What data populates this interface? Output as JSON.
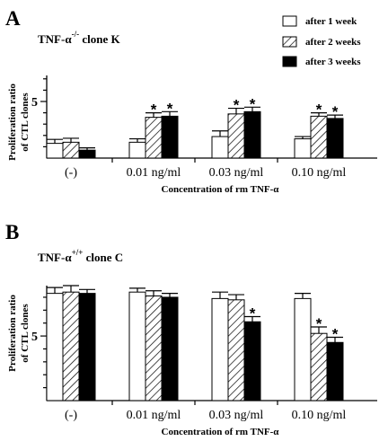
{
  "legend": {
    "entries": [
      {
        "label": "after 1 week",
        "fill": "white"
      },
      {
        "label": "after 2 weeks",
        "fill": "hatch"
      },
      {
        "label": "after 3 weeks",
        "fill": "black"
      }
    ]
  },
  "colors": {
    "ink": "#000000",
    "background": "#ffffff"
  },
  "chart_data": [
    {
      "type": "bar",
      "panel_label": "A",
      "clone_title": "TNF-α",
      "clone_superscript": "-/-",
      "clone_suffix": " clone K",
      "ylabel": [
        "Proliferation ratio",
        "of CTL clones"
      ],
      "xlabel": "Concentration of rm TNF-α",
      "categories": [
        "(-)",
        "0.01 ng/ml",
        "0.03 ng/ml",
        "0.10 ng/ml"
      ],
      "ylim": [
        0,
        7.3
      ],
      "yticks": [
        5
      ],
      "yticklabels": [
        "5"
      ],
      "series": [
        {
          "name": "after 1 week",
          "values": [
            1.3,
            1.4,
            1.9,
            1.7
          ],
          "errors": [
            0.35,
            0.3,
            0.5,
            0.2
          ]
        },
        {
          "name": "after 2 weeks",
          "values": [
            1.4,
            3.6,
            3.9,
            3.7
          ],
          "errors": [
            0.35,
            0.4,
            0.5,
            0.3
          ]
        },
        {
          "name": "after 3 weeks",
          "values": [
            0.7,
            3.7,
            4.1,
            3.5
          ],
          "errors": [
            0.2,
            0.4,
            0.4,
            0.3
          ]
        }
      ],
      "significance": [
        [
          false,
          false,
          false
        ],
        [
          false,
          true,
          true
        ],
        [
          false,
          true,
          true
        ],
        [
          false,
          true,
          true
        ]
      ],
      "star_text": "*"
    },
    {
      "type": "bar",
      "panel_label": "B",
      "clone_title": "TNF-α",
      "clone_superscript": "+/+",
      "clone_suffix": " clone C",
      "ylabel": [
        "Proliferation ratio",
        "of CTL clones"
      ],
      "xlabel": "Concentration of rm TNF-α",
      "categories": [
        "(-)",
        "0.01 ng/ml",
        "0.03 ng/ml",
        "0.10 ng/ml"
      ],
      "ylim": [
        0,
        8.9
      ],
      "yticks": [
        5
      ],
      "yticklabels": [
        "5"
      ],
      "series": [
        {
          "name": "after 1 week",
          "values": [
            8.3,
            8.4,
            7.9,
            7.9
          ],
          "errors": [
            0.45,
            0.3,
            0.5,
            0.4
          ]
        },
        {
          "name": "after 2 weeks",
          "values": [
            8.4,
            8.1,
            7.8,
            5.2
          ],
          "errors": [
            0.5,
            0.4,
            0.4,
            0.5
          ]
        },
        {
          "name": "after 3 weeks",
          "values": [
            8.3,
            8.0,
            6.1,
            4.5
          ],
          "errors": [
            0.3,
            0.3,
            0.4,
            0.4
          ]
        }
      ],
      "significance": [
        [
          false,
          false,
          false
        ],
        [
          false,
          false,
          false
        ],
        [
          false,
          false,
          true
        ],
        [
          false,
          true,
          true
        ]
      ],
      "star_text": "*"
    }
  ]
}
